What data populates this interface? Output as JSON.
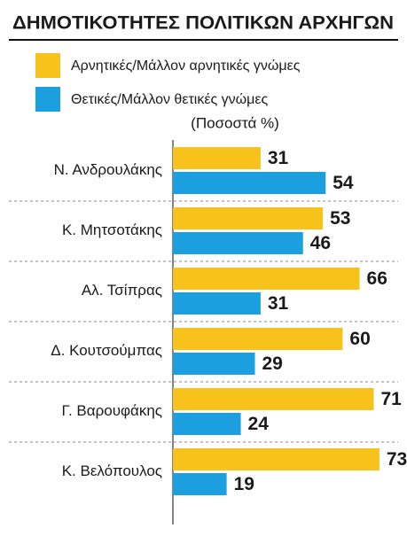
{
  "chart_data": {
    "type": "hbar",
    "title": "ΔΗΜΟΤΙΚΟΤΗΤΕΣ ΠΟΛΙΤΙΚΩΝ ΑΡΧΗΓΩΝ",
    "subtitle": "(Ποσοστά %)",
    "categories": [
      "Ν. Ανδρουλάκης",
      "Κ. Μητσοτάκης",
      "Αλ. Τσίπρας",
      "Δ. Κουτσούμπας",
      "Γ. Βαρουφάκης",
      "Κ. Βελόπουλος"
    ],
    "series": [
      {
        "name": "Αρνητικές/Μάλλον αρνητικές γνώμες",
        "color": "#f7c21c",
        "values": [
          31,
          53,
          66,
          60,
          71,
          73
        ]
      },
      {
        "name": "Θετικές/Μάλλον θετικές γνώμες",
        "color": "#1b9fdf",
        "values": [
          54,
          46,
          31,
          29,
          24,
          19
        ]
      }
    ]
  }
}
